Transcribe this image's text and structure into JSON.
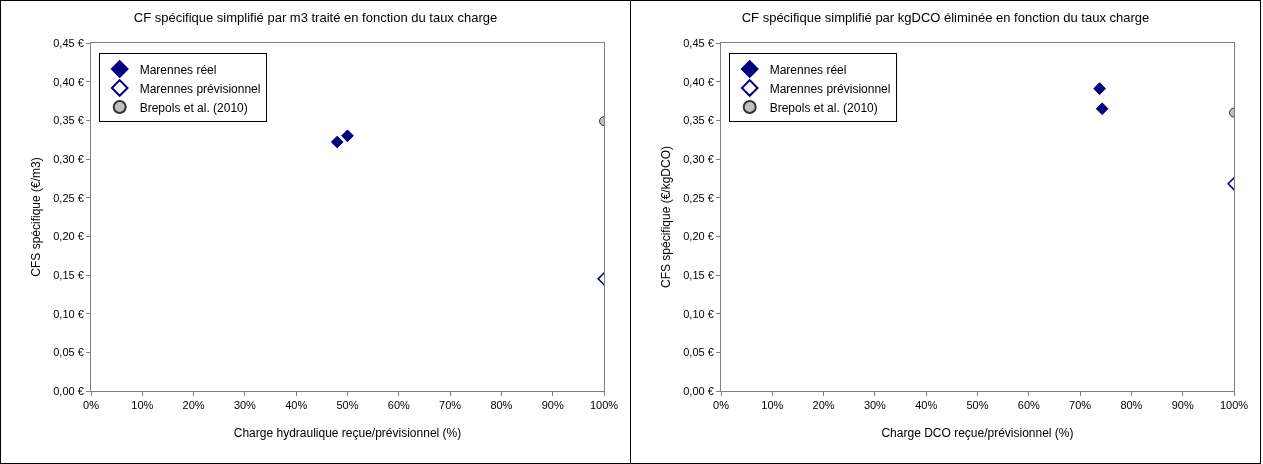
{
  "chart_data": [
    {
      "type": "scatter",
      "title": "CF spécifique simplifié par m3 traité en fonction du taux charge",
      "xlabel": "Charge hydraulique reçue/prévisionnel (%)",
      "ylabel": "CFS spécifique (€/m3)",
      "xlim": [
        0,
        100
      ],
      "xticks": [
        {
          "value": 0,
          "label": "0%"
        },
        {
          "value": 10,
          "label": "10%"
        },
        {
          "value": 20,
          "label": "20%"
        },
        {
          "value": 30,
          "label": "30%"
        },
        {
          "value": 40,
          "label": "40%"
        },
        {
          "value": 50,
          "label": "50%"
        },
        {
          "value": 60,
          "label": "60%"
        },
        {
          "value": 70,
          "label": "70%"
        },
        {
          "value": 80,
          "label": "80%"
        },
        {
          "value": 90,
          "label": "90%"
        },
        {
          "value": 100,
          "label": "100%"
        }
      ],
      "ylim": [
        0,
        0.45
      ],
      "yticks": [
        {
          "value": 0,
          "label": "0,00 €"
        },
        {
          "value": 0.05,
          "label": "0,05 €"
        },
        {
          "value": 0.1,
          "label": "0,10 €"
        },
        {
          "value": 0.15,
          "label": "0,15 €"
        },
        {
          "value": 0.2,
          "label": "0,20 €"
        },
        {
          "value": 0.25,
          "label": "0,25 €"
        },
        {
          "value": 0.3,
          "label": "0,30 €"
        },
        {
          "value": 0.35,
          "label": "0,35 €"
        },
        {
          "value": 0.4,
          "label": "0,40 €"
        },
        {
          "value": 0.45,
          "label": "0,45 €"
        }
      ],
      "grid": false,
      "legend": "top left",
      "series": [
        {
          "name": "Marennes réel",
          "color": "#000080",
          "marker": "diamond",
          "x": [
            48,
            50
          ],
          "values": [
            0.322,
            0.33
          ]
        },
        {
          "name": "Marennes prévisionnel",
          "color": "#000080",
          "marker": "diamond-open",
          "x": [
            100
          ],
          "values": [
            0.145
          ]
        },
        {
          "name": "Brepols et al. (2010)",
          "color": "#c0c0c0",
          "marker": "circle",
          "x": [
            100
          ],
          "values": [
            0.349
          ]
        }
      ]
    },
    {
      "type": "scatter",
      "title": "CF spécifique simplifié par kgDCO éliminée en fonction du taux charge",
      "xlabel": "Charge DCO reçue/prévisionnel (%)",
      "ylabel": "CFS spécifique (€/kgDCO)",
      "xlim": [
        0,
        100
      ],
      "xticks": [
        {
          "value": 0,
          "label": "0%"
        },
        {
          "value": 10,
          "label": "10%"
        },
        {
          "value": 20,
          "label": "20%"
        },
        {
          "value": 30,
          "label": "30%"
        },
        {
          "value": 40,
          "label": "40%"
        },
        {
          "value": 50,
          "label": "50%"
        },
        {
          "value": 60,
          "label": "60%"
        },
        {
          "value": 70,
          "label": "70%"
        },
        {
          "value": 80,
          "label": "80%"
        },
        {
          "value": 90,
          "label": "90%"
        },
        {
          "value": 100,
          "label": "100%"
        }
      ],
      "ylim": [
        0,
        0.45
      ],
      "yticks": [
        {
          "value": 0,
          "label": "0,00 €"
        },
        {
          "value": 0.05,
          "label": "0,05 €"
        },
        {
          "value": 0.1,
          "label": "0,10 €"
        },
        {
          "value": 0.15,
          "label": "0,15 €"
        },
        {
          "value": 0.2,
          "label": "0,20 €"
        },
        {
          "value": 0.25,
          "label": "0,25 €"
        },
        {
          "value": 0.3,
          "label": "0,30 €"
        },
        {
          "value": 0.35,
          "label": "0,35 €"
        },
        {
          "value": 0.4,
          "label": "0,40 €"
        },
        {
          "value": 0.45,
          "label": "0,45 €"
        }
      ],
      "grid": false,
      "legend": "top left",
      "series": [
        {
          "name": "Marennes réel",
          "color": "#000080",
          "marker": "diamond",
          "x": [
            73.8,
            74.3
          ],
          "values": [
            0.391,
            0.365
          ]
        },
        {
          "name": "Marennes prévisionnel",
          "color": "#000080",
          "marker": "diamond-open",
          "x": [
            100
          ],
          "values": [
            0.268
          ]
        },
        {
          "name": "Brepols et al. (2010)",
          "color": "#c0c0c0",
          "marker": "circle",
          "x": [
            100
          ],
          "values": [
            0.36
          ]
        }
      ]
    }
  ]
}
